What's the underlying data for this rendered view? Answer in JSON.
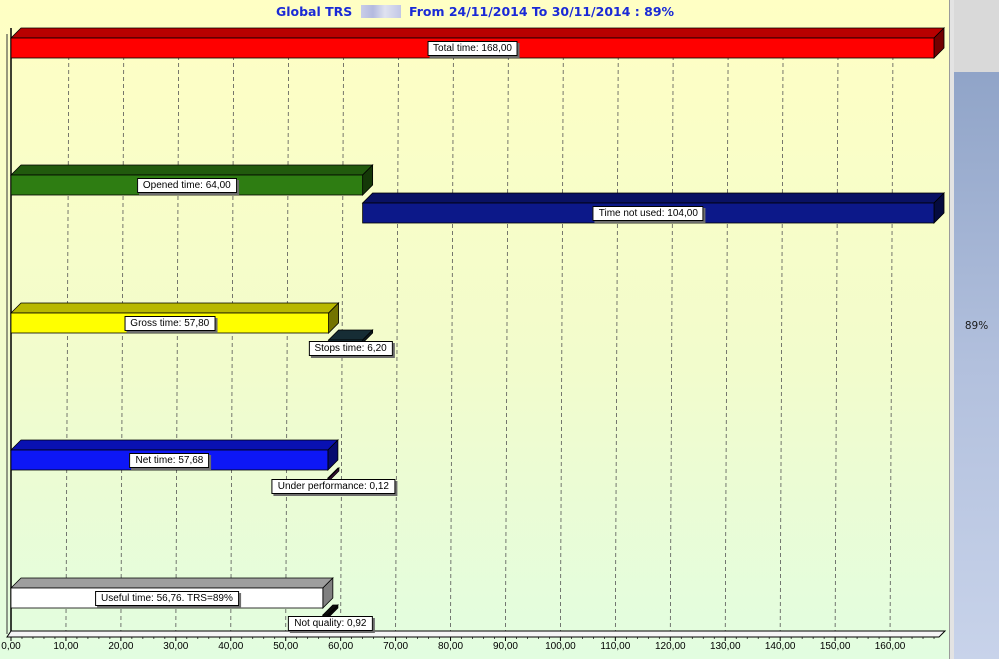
{
  "chart_data": {
    "type": "bar",
    "orientation": "horizontal",
    "stacked": true,
    "title": "Global TRS",
    "title_suffix": "From 24/11/2014 To 30/11/2014 : 89%",
    "xlim": [
      0,
      170
    ],
    "x_ticks": [
      "0,00",
      "10,00",
      "20,00",
      "30,00",
      "40,00",
      "50,00",
      "60,00",
      "70,00",
      "80,00",
      "90,00",
      "100,00",
      "110,00",
      "120,00",
      "130,00",
      "140,00",
      "150,00",
      "160,00"
    ],
    "grid": "vertical-dashed",
    "bars": [
      {
        "name": "total",
        "start": 0,
        "value": 168.0,
        "label": "Total time: 168,00",
        "color": "#ff0000"
      },
      {
        "name": "opened",
        "start": 0,
        "value": 64.0,
        "label": "Opened time: 64,00",
        "color": "#2e7d12"
      },
      {
        "name": "not-used",
        "start": 64.0,
        "value": 104.0,
        "label": "Time not used: 104,00",
        "color": "#0c1889"
      },
      {
        "name": "gross",
        "start": 0,
        "value": 57.8,
        "label": "Gross time: 57,80",
        "color": "#ffff00"
      },
      {
        "name": "stops",
        "start": 57.8,
        "value": 6.2,
        "label": "Stops time: 6,20",
        "color": "#1e3f4a"
      },
      {
        "name": "net",
        "start": 0,
        "value": 57.68,
        "label": "Net time: 57,68",
        "color": "#0d17f6"
      },
      {
        "name": "under-performance",
        "start": 57.68,
        "value": 0.12,
        "label": "Under performance: 0,12",
        "color": "#7a1f7a"
      },
      {
        "name": "useful",
        "start": 0,
        "value": 56.76,
        "label": "Useful time: 56,76. TRS=89%",
        "color": "#ffffff"
      },
      {
        "name": "not-quality",
        "start": 56.76,
        "value": 0.92,
        "label": "Not quality: 0,92",
        "color": "#101010"
      }
    ],
    "side_gauge": {
      "value": 89,
      "label": "89%",
      "color": "#a6b6d8"
    }
  }
}
